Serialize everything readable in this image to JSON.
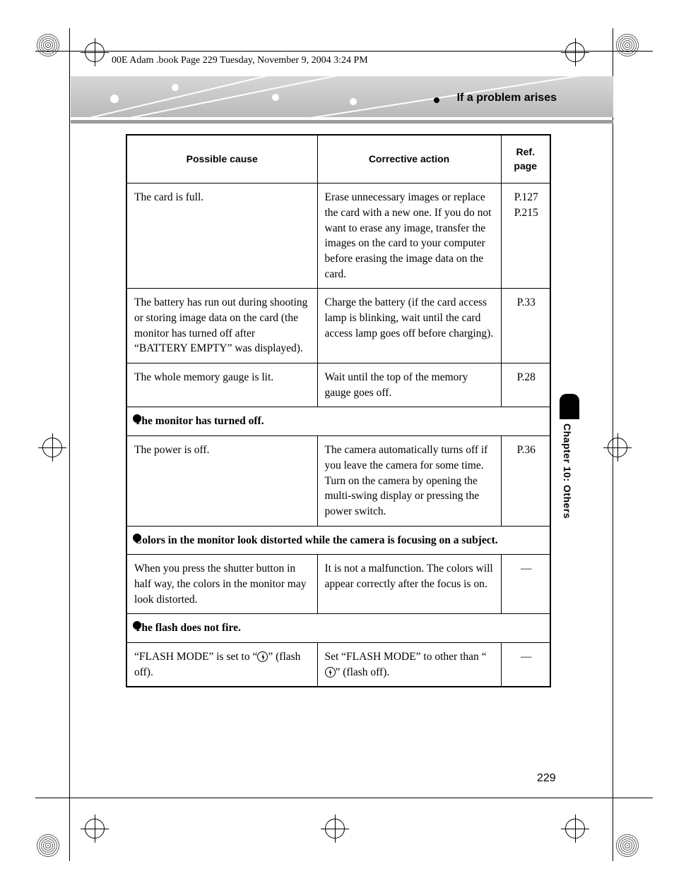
{
  "meta": {
    "top_caption": "00E Adam .book  Page 229  Tuesday, November 9, 2004  3:24 PM",
    "banner_title": "If a problem arises",
    "side_label": "Chapter 10: Others",
    "page_number": "229"
  },
  "table": {
    "headers": {
      "cause": "Possible cause",
      "action": "Corrective action",
      "ref": "Ref. page"
    },
    "rows": [
      {
        "type": "row",
        "cause": "The card is full.",
        "action": "Erase unnecessary images or replace the card with a new one. If you do not want to erase any image, transfer the images on the card to your computer before erasing the image data on the card.",
        "ref": "P.127\nP.215"
      },
      {
        "type": "row",
        "cause": "The battery has run out during shooting or storing image data on the card (the monitor has turned off after “BATTERY EMPTY” was displayed).",
        "action": "Charge the battery (if the card access lamp is blinking, wait until the card access lamp goes off before charging).",
        "ref": "P.33"
      },
      {
        "type": "row",
        "cause": "The whole memory gauge is lit.",
        "action": "Wait until the top of the memory gauge goes off.",
        "ref": "P.28"
      },
      {
        "type": "section",
        "title": "The monitor has turned off."
      },
      {
        "type": "row",
        "cause": "The power is off.",
        "action": "The camera automatically turns off if you leave the camera for some time. Turn on the camera by opening the multi-swing display or pressing the power switch.",
        "ref": "P.36"
      },
      {
        "type": "section",
        "title": "Colors in the monitor look distorted while the camera is focusing on a subject."
      },
      {
        "type": "row",
        "cause": "When you press the shutter button in half way, the colors in the monitor may look distorted.",
        "action": "It is not a malfunction. The colors will appear correctly after the focus is on.",
        "ref": "—"
      },
      {
        "type": "section",
        "title": "The flash does not fire."
      },
      {
        "type": "row",
        "flash": true,
        "cause_pre": "“FLASH MODE” is set to “",
        "cause_post": "” (flash off).",
        "action_pre": "Set “FLASH MODE” to other than “",
        "action_post": "” (flash off).",
        "ref": "—"
      }
    ]
  },
  "style": {
    "banner_bg_from": "#d7d7d7",
    "banner_bg_to": "#b9b9b9",
    "underline_color": "#9a9a9a",
    "font_serif": "Times New Roman",
    "font_sans": "Arial"
  }
}
